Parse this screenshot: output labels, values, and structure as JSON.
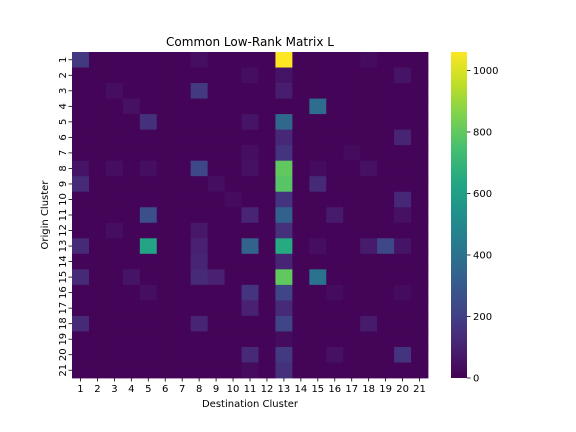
{
  "chart_data": {
    "type": "heatmap",
    "title": "Common Low-Rank Matrix L",
    "xlabel": "Destination Cluster",
    "ylabel": "Origin Cluster",
    "x_categories": [
      "1",
      "2",
      "3",
      "4",
      "5",
      "6",
      "7",
      "8",
      "9",
      "10",
      "11",
      "12",
      "13",
      "14",
      "15",
      "16",
      "17",
      "18",
      "19",
      "20",
      "21"
    ],
    "y_categories": [
      "1",
      "2",
      "3",
      "4",
      "5",
      "6",
      "7",
      "8",
      "9",
      "10",
      "11",
      "12",
      "13",
      "14",
      "15",
      "16",
      "17",
      "18",
      "19",
      "20",
      "21"
    ],
    "colormap": "viridis",
    "colorbar": {
      "min": 0,
      "max": 1060,
      "ticks": [
        0,
        200,
        400,
        600,
        800,
        1000
      ]
    },
    "values": [
      [
        180,
        10,
        10,
        10,
        10,
        10,
        10,
        40,
        10,
        10,
        10,
        10,
        1060,
        10,
        10,
        10,
        10,
        30,
        10,
        10,
        10
      ],
      [
        10,
        10,
        10,
        10,
        10,
        10,
        10,
        10,
        10,
        10,
        40,
        10,
        60,
        10,
        10,
        10,
        10,
        10,
        10,
        60,
        10
      ],
      [
        10,
        10,
        40,
        10,
        10,
        10,
        10,
        180,
        10,
        10,
        10,
        10,
        90,
        10,
        10,
        10,
        10,
        10,
        10,
        10,
        10
      ],
      [
        10,
        10,
        10,
        50,
        10,
        10,
        10,
        10,
        10,
        10,
        10,
        10,
        10,
        10,
        380,
        10,
        10,
        10,
        10,
        10,
        10
      ],
      [
        10,
        10,
        10,
        10,
        150,
        10,
        10,
        10,
        10,
        10,
        60,
        10,
        360,
        10,
        10,
        10,
        10,
        10,
        10,
        10,
        10
      ],
      [
        10,
        10,
        10,
        10,
        10,
        10,
        10,
        10,
        10,
        10,
        10,
        10,
        120,
        10,
        10,
        10,
        10,
        10,
        10,
        110,
        10
      ],
      [
        10,
        10,
        10,
        10,
        10,
        10,
        10,
        10,
        10,
        10,
        40,
        10,
        160,
        10,
        10,
        10,
        30,
        10,
        10,
        10,
        10
      ],
      [
        60,
        10,
        40,
        10,
        40,
        10,
        10,
        230,
        10,
        10,
        50,
        10,
        800,
        10,
        30,
        10,
        10,
        50,
        10,
        10,
        10
      ],
      [
        130,
        10,
        10,
        10,
        10,
        10,
        10,
        10,
        40,
        10,
        10,
        10,
        780,
        10,
        130,
        10,
        10,
        10,
        10,
        10,
        10
      ],
      [
        10,
        10,
        10,
        10,
        10,
        10,
        10,
        10,
        10,
        30,
        10,
        10,
        160,
        10,
        10,
        10,
        10,
        10,
        10,
        120,
        10
      ],
      [
        10,
        10,
        10,
        10,
        260,
        10,
        10,
        10,
        10,
        10,
        110,
        10,
        330,
        10,
        10,
        80,
        10,
        10,
        10,
        50,
        10
      ],
      [
        10,
        10,
        40,
        10,
        10,
        10,
        10,
        70,
        10,
        10,
        10,
        10,
        150,
        10,
        10,
        10,
        10,
        10,
        10,
        10,
        10
      ],
      [
        130,
        10,
        10,
        10,
        620,
        10,
        10,
        100,
        10,
        10,
        340,
        10,
        650,
        10,
        40,
        10,
        10,
        80,
        230,
        60,
        10
      ],
      [
        10,
        10,
        10,
        10,
        10,
        10,
        10,
        110,
        10,
        10,
        10,
        10,
        110,
        10,
        10,
        10,
        10,
        10,
        10,
        10,
        10
      ],
      [
        130,
        10,
        10,
        60,
        10,
        10,
        10,
        130,
        100,
        10,
        10,
        10,
        800,
        10,
        400,
        10,
        10,
        10,
        10,
        10,
        10
      ],
      [
        10,
        10,
        10,
        10,
        40,
        10,
        10,
        10,
        10,
        10,
        160,
        10,
        220,
        10,
        10,
        30,
        10,
        10,
        10,
        30,
        10
      ],
      [
        10,
        10,
        10,
        10,
        10,
        10,
        10,
        10,
        10,
        10,
        100,
        10,
        130,
        10,
        10,
        10,
        10,
        10,
        10,
        10,
        10
      ],
      [
        130,
        10,
        10,
        10,
        10,
        10,
        10,
        110,
        10,
        10,
        10,
        10,
        220,
        10,
        10,
        10,
        10,
        80,
        10,
        10,
        10
      ],
      [
        10,
        10,
        10,
        10,
        10,
        10,
        10,
        10,
        10,
        10,
        10,
        10,
        30,
        10,
        10,
        10,
        10,
        10,
        10,
        10,
        10
      ],
      [
        10,
        10,
        10,
        10,
        10,
        10,
        10,
        10,
        10,
        10,
        130,
        10,
        180,
        10,
        10,
        50,
        10,
        10,
        10,
        160,
        10
      ],
      [
        10,
        10,
        10,
        10,
        10,
        10,
        10,
        10,
        10,
        10,
        30,
        10,
        150,
        10,
        10,
        10,
        10,
        10,
        10,
        10,
        10
      ]
    ]
  }
}
